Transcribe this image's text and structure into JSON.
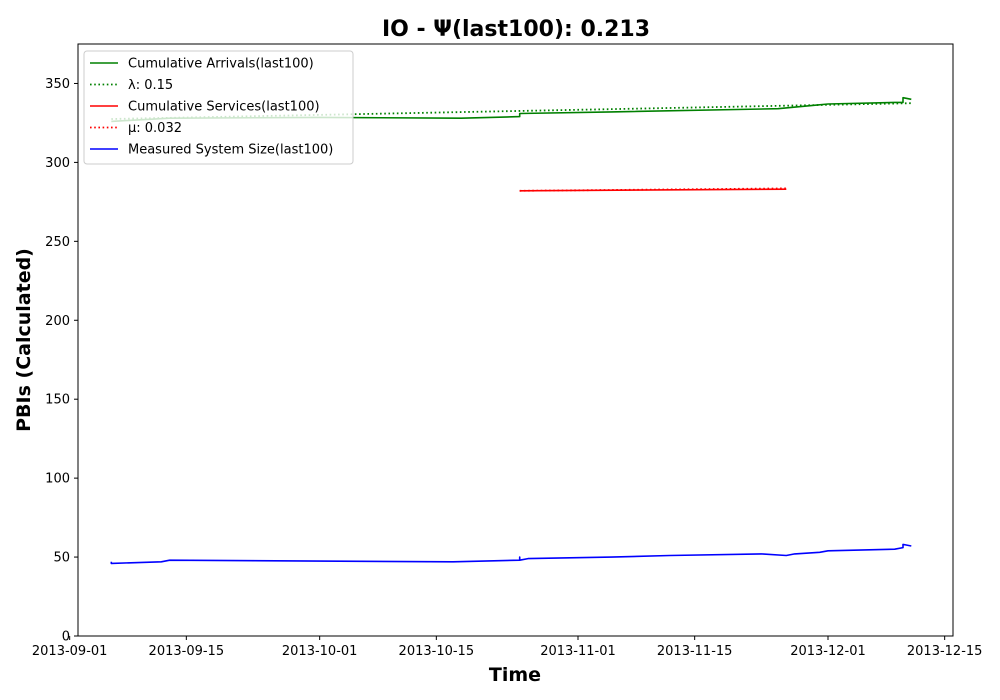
{
  "chart_data": {
    "type": "line",
    "title": "IO -  Ψ(last100): 0.213",
    "xlabel": "Time",
    "ylabel": "PBIs (Calculated)",
    "xlim": [
      "2013-09-02",
      "2013-12-16"
    ],
    "ylim": [
      0,
      375
    ],
    "x_ticks": [
      "2013-09-01",
      "2013-09-15",
      "2013-10-01",
      "2013-10-15",
      "2013-11-01",
      "2013-11-15",
      "2013-12-01",
      "2013-12-15"
    ],
    "y_ticks": [
      0,
      50,
      100,
      150,
      200,
      250,
      300,
      350
    ],
    "grid": false,
    "legend_position": "upper-left",
    "series": [
      {
        "name": "Cumulative Arrivals(last100)",
        "color": "#008000",
        "style": "solid",
        "points": [
          [
            "2013-09-06",
            326
          ],
          [
            "2013-09-13",
            328
          ],
          [
            "2013-10-01",
            328.5
          ],
          [
            "2013-10-18",
            328
          ],
          [
            "2013-10-25",
            329
          ],
          [
            "2013-10-25",
            331
          ],
          [
            "2013-11-05",
            332
          ],
          [
            "2013-11-25",
            334
          ],
          [
            "2013-11-29",
            336
          ],
          [
            "2013-12-01",
            337
          ],
          [
            "2013-12-09",
            338
          ],
          [
            "2013-12-10",
            338
          ],
          [
            "2013-12-10",
            341
          ],
          [
            "2013-12-11",
            340
          ]
        ]
      },
      {
        "name": "λ: 0.15",
        "color": "#008000",
        "style": "dotted",
        "points": [
          [
            "2013-09-06",
            327.5
          ],
          [
            "2013-12-11",
            337.5
          ]
        ]
      },
      {
        "name": "Cumulative Services(last100)",
        "color": "#ff0000",
        "style": "solid",
        "points": [
          [
            "2013-10-25",
            282
          ],
          [
            "2013-11-26",
            283
          ]
        ]
      },
      {
        "name": "μ: 0.032",
        "color": "#ff0000",
        "style": "dotted",
        "points": [
          [
            "2013-10-25",
            282
          ],
          [
            "2013-11-26",
            283.5
          ]
        ]
      },
      {
        "name": "Measured System Size(last100)",
        "color": "#0000ff",
        "style": "solid",
        "points": [
          [
            "2013-09-06",
            47
          ],
          [
            "2013-09-06",
            46
          ],
          [
            "2013-09-12",
            47
          ],
          [
            "2013-09-13",
            48
          ],
          [
            "2013-10-17",
            47
          ],
          [
            "2013-10-25",
            48
          ],
          [
            "2013-10-25",
            50
          ],
          [
            "2013-10-25",
            48
          ],
          [
            "2013-10-26",
            49
          ],
          [
            "2013-11-05",
            50
          ],
          [
            "2013-11-12",
            51
          ],
          [
            "2013-11-23",
            52
          ],
          [
            "2013-11-26",
            51
          ],
          [
            "2013-11-27",
            52
          ],
          [
            "2013-11-30",
            53
          ],
          [
            "2013-12-01",
            54
          ],
          [
            "2013-12-09",
            55
          ],
          [
            "2013-12-10",
            56
          ],
          [
            "2013-12-10",
            58
          ],
          [
            "2013-12-11",
            57
          ]
        ]
      }
    ]
  }
}
